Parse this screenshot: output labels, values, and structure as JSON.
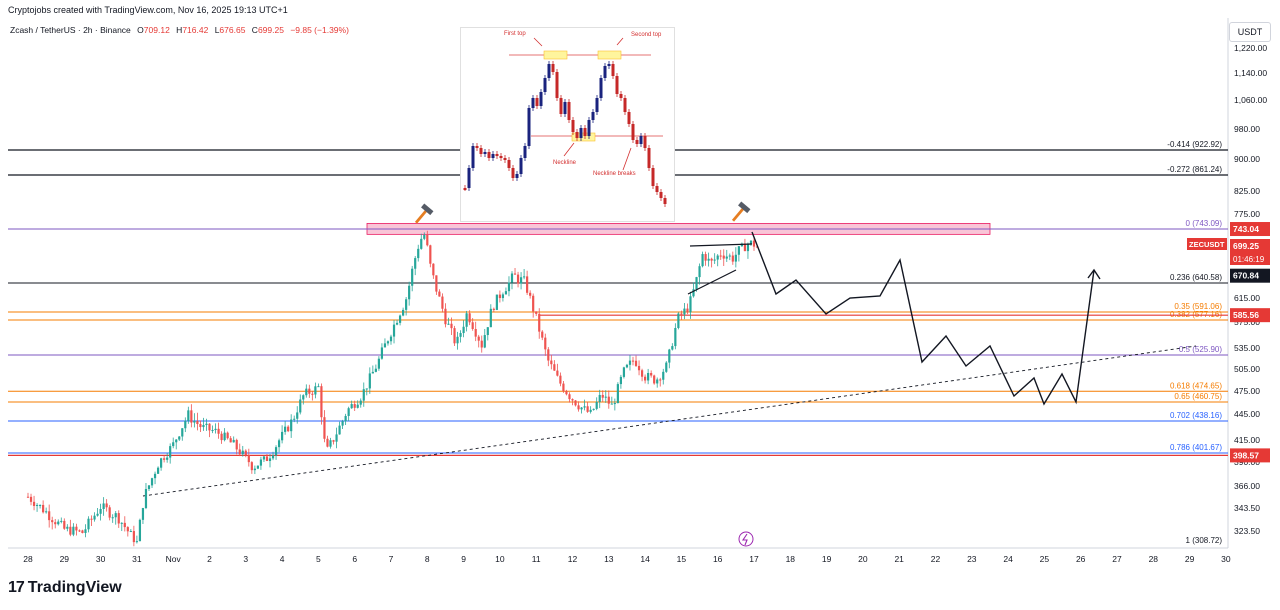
{
  "header": {
    "created_by": "Cryptojobs created with TradingView.com, Nov 16, 2025 19:13 UTC+1",
    "symbol": "Zcash / TetherUS · 2h · Binance",
    "ohlc": [
      {
        "label": "O",
        "value": "709.12"
      },
      {
        "label": "H",
        "value": "716.42"
      },
      {
        "label": "L",
        "value": "676.65"
      },
      {
        "label": "C",
        "value": "699.25"
      }
    ],
    "change": "−9.85 (−1.39%)"
  },
  "currency_button": "USDT",
  "brand": "TradingView",
  "colors": {
    "up": "#26a69a",
    "down": "#ef5350",
    "fib_orange": "#f57c00",
    "fib_purple": "#7e57c2",
    "fib_blue": "#2962ff",
    "resistance_zone": "#f8bbd0",
    "axis_text": "#131722"
  },
  "inset": {
    "labels": {
      "first_top": "First top",
      "second_top": "Second top",
      "neckline": "Neckline",
      "neckline_breaks": "Neckline breaks"
    }
  },
  "price_badges": {
    "resistance": "743.04",
    "symbol": "ZECUSDT",
    "last": "699.25",
    "countdown": "01:46:19",
    "low": "670.84",
    "mid": "585.56",
    "support": "398.57"
  },
  "chart_data": {
    "type": "candlestick",
    "x_tick_labels": [
      "28",
      "29",
      "30",
      "31",
      "Nov",
      "2",
      "3",
      "4",
      "5",
      "6",
      "7",
      "8",
      "9",
      "10",
      "11",
      "12",
      "13",
      "14",
      "15",
      "16",
      "17",
      "18",
      "19",
      "20",
      "21",
      "22",
      "23",
      "24",
      "25",
      "26",
      "27",
      "28",
      "29",
      "30"
    ],
    "y_tick_labels": [
      "1,220.00",
      "1,140.00",
      "1,060.00",
      "980.00",
      "900.00",
      "825.00",
      "775.00",
      "655.00",
      "615.00",
      "575.00",
      "535.00",
      "505.00",
      "475.00",
      "445.00",
      "415.00",
      "390.00",
      "366.00",
      "343.50",
      "323.50"
    ],
    "fib_levels": [
      {
        "label": "-0.414 (922.92)",
        "price": 922.92,
        "color": "#131722"
      },
      {
        "label": "-0.272 (861.24)",
        "price": 861.24,
        "color": "#131722"
      },
      {
        "label": "0 (743.09)",
        "price": 743.09,
        "color": "#7e57c2"
      },
      {
        "label": "0.236 (640.58)",
        "price": 640.58,
        "color": "#131722"
      },
      {
        "label": "0.35 (591.06)",
        "price": 591.06,
        "color": "#f57c00"
      },
      {
        "label": "0.382 (577.16)",
        "price": 577.16,
        "color": "#f57c00"
      },
      {
        "label": "0.5 (525.90)",
        "price": 525.9,
        "color": "#7e57c2"
      },
      {
        "label": "0.618 (474.65)",
        "price": 474.65,
        "color": "#f57c00"
      },
      {
        "label": "0.65 (460.75)",
        "price": 460.75,
        "color": "#f57c00"
      },
      {
        "label": "0.702 (438.16)",
        "price": 438.16,
        "color": "#2962ff"
      },
      {
        "label": "0.786 (401.67)",
        "price": 401.67,
        "color": "#2962ff"
      },
      {
        "label": "1 (308.72)",
        "price": 308.72,
        "color": "#131722"
      }
    ],
    "key_prices": {
      "resistance": 743.04,
      "last": 699.25,
      "mid_support": 585.56,
      "support": 398.57
    },
    "series_close_approx": [
      {
        "date": "Oct 28",
        "close": 355
      },
      {
        "date": "Oct 29",
        "close": 325
      },
      {
        "date": "Oct 30",
        "close": 345
      },
      {
        "date": "Oct 31",
        "close": 395
      },
      {
        "date": "Nov 1",
        "close": 430
      },
      {
        "date": "Nov 2",
        "close": 410
      },
      {
        "date": "Nov 3",
        "close": 420
      },
      {
        "date": "Nov 4",
        "close": 440
      },
      {
        "date": "Nov 5",
        "close": 470
      },
      {
        "date": "Nov 6",
        "close": 560
      },
      {
        "date": "Nov 7",
        "close": 690
      },
      {
        "date": "Nov 8",
        "close": 560
      },
      {
        "date": "Nov 9",
        "close": 590
      },
      {
        "date": "Nov 10",
        "close": 640
      },
      {
        "date": "Nov 11",
        "close": 510
      },
      {
        "date": "Nov 12",
        "close": 450
      },
      {
        "date": "Nov 13",
        "close": 490
      },
      {
        "date": "Nov 14",
        "close": 530
      },
      {
        "date": "Nov 15",
        "close": 680
      },
      {
        "date": "Nov 16",
        "close": 699.25
      }
    ]
  }
}
